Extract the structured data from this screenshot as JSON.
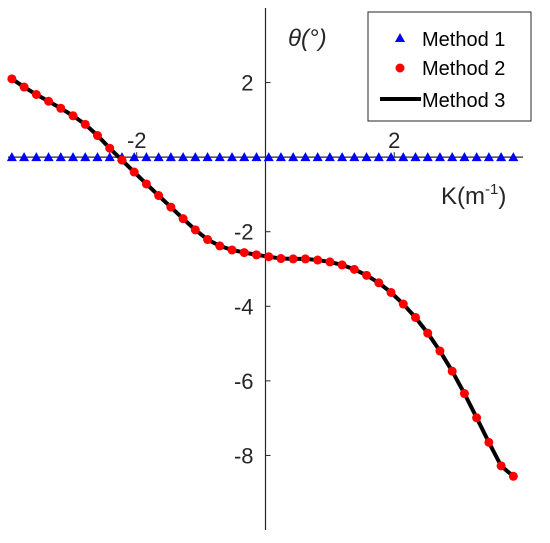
{
  "chart_data": {
    "type": "line",
    "xlabel": "K(m",
    "xlabel_sup": "-1",
    "xlabel_close": ")",
    "ylabel": "θ(°)",
    "xlim": [
      -4,
      4
    ],
    "ylim": [
      -10,
      4
    ],
    "x_ticks": [
      {
        "value": -2,
        "label": "-2"
      },
      {
        "value": 2,
        "label": "2"
      }
    ],
    "y_ticks": [
      {
        "value": 2,
        "label": "2"
      },
      {
        "value": -2,
        "label": "-2"
      },
      {
        "value": -4,
        "label": "-4"
      },
      {
        "value": -6,
        "label": "-6"
      },
      {
        "value": -8,
        "label": "-8"
      }
    ],
    "grid": false,
    "legend_position": "top-right",
    "series": [
      {
        "name": "Method 1",
        "marker": "triangle",
        "color": "#0000ff",
        "x": [
          -3.94,
          -3.75,
          -3.56,
          -3.37,
          -3.18,
          -2.99,
          -2.8,
          -2.61,
          -2.42,
          -2.23,
          -2.04,
          -1.85,
          -1.66,
          -1.47,
          -1.28,
          -1.09,
          -0.9,
          -0.71,
          -0.52,
          -0.33,
          -0.14,
          0.05,
          0.24,
          0.43,
          0.62,
          0.81,
          1.0,
          1.19,
          1.38,
          1.57,
          1.76,
          1.95,
          2.14,
          2.33,
          2.52,
          2.71,
          2.9,
          3.09,
          3.28,
          3.47,
          3.66,
          3.85
        ],
        "y": [
          0,
          0,
          0,
          0,
          0,
          0,
          0,
          0,
          0,
          0,
          0,
          0,
          0,
          0,
          0,
          0,
          0,
          0,
          0,
          0,
          0,
          0,
          0,
          0,
          0,
          0,
          0,
          0,
          0,
          0,
          0,
          0,
          0,
          0,
          0,
          0,
          0,
          0,
          0,
          0,
          0,
          0
        ]
      },
      {
        "name": "Method 2",
        "marker": "circle",
        "color": "#ff0000",
        "x": [
          -3.94,
          -3.75,
          -3.56,
          -3.37,
          -3.18,
          -2.99,
          -2.8,
          -2.61,
          -2.42,
          -2.23,
          -2.04,
          -1.85,
          -1.66,
          -1.47,
          -1.28,
          -1.09,
          -0.9,
          -0.71,
          -0.52,
          -0.33,
          -0.14,
          0.05,
          0.24,
          0.43,
          0.62,
          0.81,
          1.0,
          1.19,
          1.38,
          1.57,
          1.76,
          1.95,
          2.14,
          2.33,
          2.52,
          2.71,
          2.9,
          3.09,
          3.28,
          3.47,
          3.66,
          3.85
        ],
        "y": [
          2.1,
          1.88,
          1.68,
          1.5,
          1.31,
          1.11,
          0.88,
          0.58,
          0.24,
          -0.08,
          -0.4,
          -0.72,
          -1.03,
          -1.34,
          -1.65,
          -1.95,
          -2.21,
          -2.38,
          -2.49,
          -2.56,
          -2.62,
          -2.67,
          -2.72,
          -2.73,
          -2.73,
          -2.76,
          -2.81,
          -2.89,
          -3.01,
          -3.17,
          -3.37,
          -3.63,
          -3.94,
          -4.3,
          -4.72,
          -5.2,
          -5.74,
          -6.34,
          -6.99,
          -7.65,
          -8.28,
          -8.56
        ]
      },
      {
        "name": "Method 3",
        "marker": "line",
        "color": "#000000",
        "x": [
          -3.94,
          -3.75,
          -3.56,
          -3.37,
          -3.18,
          -2.99,
          -2.8,
          -2.61,
          -2.42,
          -2.23,
          -2.04,
          -1.85,
          -1.66,
          -1.47,
          -1.28,
          -1.09,
          -0.9,
          -0.71,
          -0.52,
          -0.33,
          -0.14,
          0.05,
          0.24,
          0.43,
          0.62,
          0.81,
          1.0,
          1.19,
          1.38,
          1.57,
          1.76,
          1.95,
          2.14,
          2.33,
          2.52,
          2.71,
          2.9,
          3.09,
          3.28,
          3.47,
          3.66,
          3.85
        ],
        "y": [
          2.1,
          1.88,
          1.68,
          1.5,
          1.31,
          1.11,
          0.88,
          0.58,
          0.24,
          -0.08,
          -0.4,
          -0.72,
          -1.03,
          -1.34,
          -1.65,
          -1.95,
          -2.21,
          -2.38,
          -2.49,
          -2.56,
          -2.62,
          -2.67,
          -2.72,
          -2.73,
          -2.73,
          -2.76,
          -2.81,
          -2.89,
          -3.01,
          -3.17,
          -3.37,
          -3.63,
          -3.94,
          -4.3,
          -4.72,
          -5.2,
          -5.74,
          -6.34,
          -6.99,
          -7.65,
          -8.28,
          -8.56
        ]
      }
    ]
  }
}
